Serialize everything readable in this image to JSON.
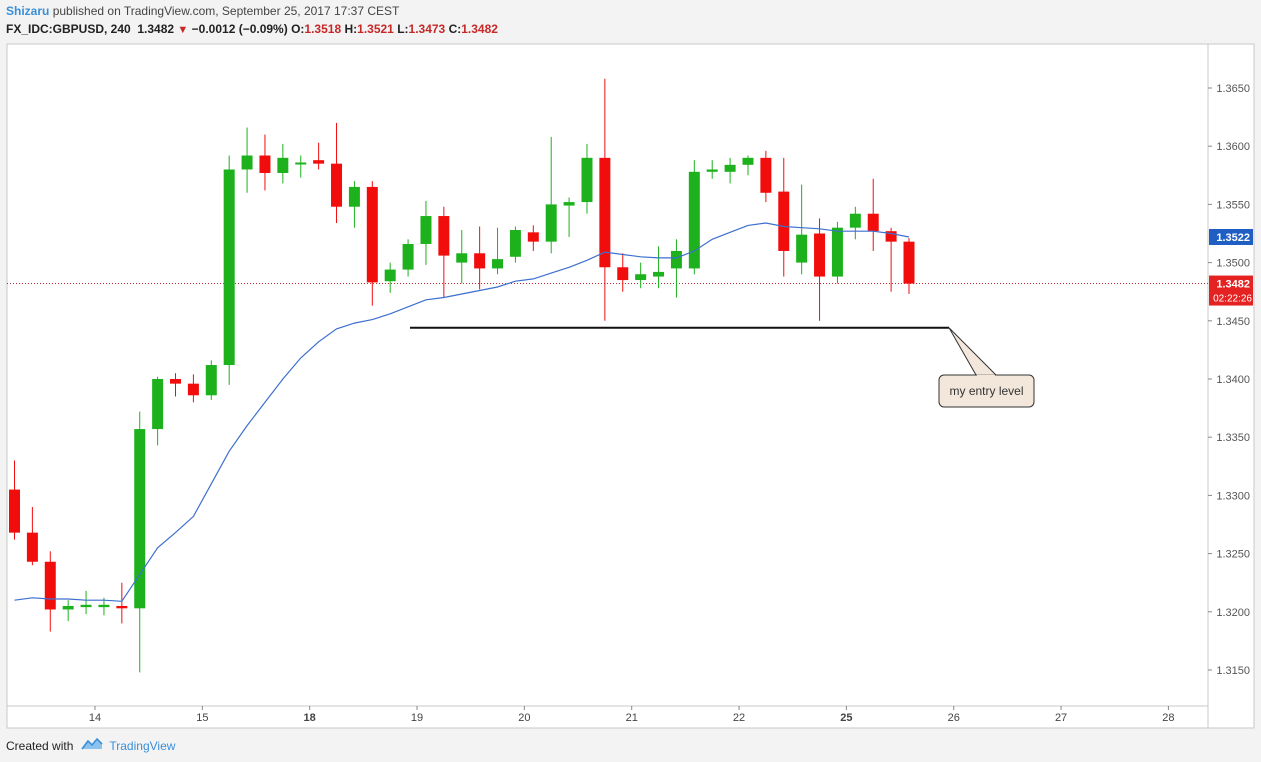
{
  "header": {
    "author": "Shizaru",
    "published": "published on TradingView.com, September 25, 2017 17:37 CEST",
    "symbol": "FX_IDC:GBPUSD, 240",
    "last": "1.3482",
    "change": "−0.0012 (−0.09%)",
    "o_label": "O:",
    "o": "1.3518",
    "h_label": "H:",
    "h": "1.3521",
    "l_label": "L:",
    "l": "1.3473",
    "c_label": "C:",
    "c": "1.3482"
  },
  "footer": {
    "created_with": "Created with",
    "brand": "TradingView"
  },
  "colors": {
    "up": "#1db21d",
    "down": "#f20d0d",
    "ma": "#3d6fcf",
    "price_line": "#c62828",
    "ma_badge": "#1f5fc4",
    "price_badge": "#e52222"
  },
  "chart_data": {
    "type": "candlestick",
    "symbol": "GBPUSD",
    "timeframe": "240",
    "ylim": [
      1.3105,
      1.37
    ],
    "y_ticks": [
      "1.3150",
      "1.3200",
      "1.3250",
      "1.3300",
      "1.3350",
      "1.3400",
      "1.3450",
      "1.3500",
      "1.3550",
      "1.3600",
      "1.3650"
    ],
    "x_ticks": [
      {
        "label": "14",
        "bold": false,
        "i": 4.5
      },
      {
        "label": "15",
        "bold": false,
        "i": 10.5
      },
      {
        "label": "18",
        "bold": true,
        "i": 16.5
      },
      {
        "label": "19",
        "bold": false,
        "i": 22.5
      },
      {
        "label": "20",
        "bold": false,
        "i": 28.5
      },
      {
        "label": "21",
        "bold": false,
        "i": 34.5
      },
      {
        "label": "22",
        "bold": false,
        "i": 40.5
      },
      {
        "label": "25",
        "bold": true,
        "i": 46.5
      },
      {
        "label": "26",
        "bold": false,
        "i": 52.5
      },
      {
        "label": "27",
        "bold": false,
        "i": 58.5
      },
      {
        "label": "28",
        "bold": false,
        "i": 64.5
      }
    ],
    "candles": [
      {
        "o": 1.3305,
        "h": 1.333,
        "l": 1.3262,
        "c": 1.3268
      },
      {
        "o": 1.3268,
        "h": 1.329,
        "l": 1.324,
        "c": 1.3243
      },
      {
        "o": 1.3243,
        "h": 1.3252,
        "l": 1.3183,
        "c": 1.3202
      },
      {
        "o": 1.3202,
        "h": 1.321,
        "l": 1.3192,
        "c": 1.3205
      },
      {
        "o": 1.3204,
        "h": 1.3218,
        "l": 1.3198,
        "c": 1.3206
      },
      {
        "o": 1.3204,
        "h": 1.3212,
        "l": 1.3197,
        "c": 1.3206
      },
      {
        "o": 1.3205,
        "h": 1.3225,
        "l": 1.319,
        "c": 1.3203
      },
      {
        "o": 1.3203,
        "h": 1.3372,
        "l": 1.3148,
        "c": 1.3357
      },
      {
        "o": 1.3357,
        "h": 1.3402,
        "l": 1.3343,
        "c": 1.34
      },
      {
        "o": 1.34,
        "h": 1.3405,
        "l": 1.3385,
        "c": 1.3396
      },
      {
        "o": 1.3396,
        "h": 1.3404,
        "l": 1.338,
        "c": 1.3386
      },
      {
        "o": 1.3386,
        "h": 1.3416,
        "l": 1.3382,
        "c": 1.3412
      },
      {
        "o": 1.3412,
        "h": 1.3592,
        "l": 1.3395,
        "c": 1.358
      },
      {
        "o": 1.358,
        "h": 1.3616,
        "l": 1.356,
        "c": 1.3592
      },
      {
        "o": 1.3592,
        "h": 1.361,
        "l": 1.3562,
        "c": 1.3577
      },
      {
        "o": 1.3577,
        "h": 1.3602,
        "l": 1.3568,
        "c": 1.359
      },
      {
        "o": 1.3586,
        "h": 1.3592,
        "l": 1.3573,
        "c": 1.3586
      },
      {
        "o": 1.3588,
        "h": 1.3603,
        "l": 1.358,
        "c": 1.3585
      },
      {
        "o": 1.3585,
        "h": 1.362,
        "l": 1.3534,
        "c": 1.3548
      },
      {
        "o": 1.3548,
        "h": 1.357,
        "l": 1.353,
        "c": 1.3565
      },
      {
        "o": 1.3565,
        "h": 1.357,
        "l": 1.3463,
        "c": 1.3483
      },
      {
        "o": 1.3484,
        "h": 1.35,
        "l": 1.3474,
        "c": 1.3494
      },
      {
        "o": 1.3494,
        "h": 1.352,
        "l": 1.3488,
        "c": 1.3516
      },
      {
        "o": 1.3516,
        "h": 1.3553,
        "l": 1.3498,
        "c": 1.354
      },
      {
        "o": 1.354,
        "h": 1.3548,
        "l": 1.347,
        "c": 1.3506
      },
      {
        "o": 1.35,
        "h": 1.3528,
        "l": 1.3482,
        "c": 1.3508
      },
      {
        "o": 1.3508,
        "h": 1.3531,
        "l": 1.3477,
        "c": 1.3495
      },
      {
        "o": 1.3495,
        "h": 1.353,
        "l": 1.349,
        "c": 1.3503
      },
      {
        "o": 1.3505,
        "h": 1.3531,
        "l": 1.35,
        "c": 1.3528
      },
      {
        "o": 1.3526,
        "h": 1.3532,
        "l": 1.351,
        "c": 1.3518
      },
      {
        "o": 1.3518,
        "h": 1.3608,
        "l": 1.3508,
        "c": 1.355
      },
      {
        "o": 1.3549,
        "h": 1.3556,
        "l": 1.3522,
        "c": 1.3552
      },
      {
        "o": 1.3552,
        "h": 1.3602,
        "l": 1.3542,
        "c": 1.359
      },
      {
        "o": 1.359,
        "h": 1.3658,
        "l": 1.345,
        "c": 1.3496
      },
      {
        "o": 1.3496,
        "h": 1.3508,
        "l": 1.3475,
        "c": 1.3485
      },
      {
        "o": 1.3485,
        "h": 1.35,
        "l": 1.3478,
        "c": 1.349
      },
      {
        "o": 1.3488,
        "h": 1.3514,
        "l": 1.3478,
        "c": 1.3492
      },
      {
        "o": 1.3495,
        "h": 1.352,
        "l": 1.347,
        "c": 1.351
      },
      {
        "o": 1.3495,
        "h": 1.3588,
        "l": 1.349,
        "c": 1.3578
      },
      {
        "o": 1.3578,
        "h": 1.3588,
        "l": 1.3572,
        "c": 1.358
      },
      {
        "o": 1.3578,
        "h": 1.359,
        "l": 1.3568,
        "c": 1.3584
      },
      {
        "o": 1.3584,
        "h": 1.3592,
        "l": 1.3575,
        "c": 1.359
      },
      {
        "o": 1.359,
        "h": 1.3596,
        "l": 1.3552,
        "c": 1.356
      },
      {
        "o": 1.3561,
        "h": 1.359,
        "l": 1.3488,
        "c": 1.351
      },
      {
        "o": 1.35,
        "h": 1.3567,
        "l": 1.349,
        "c": 1.3524
      },
      {
        "o": 1.3525,
        "h": 1.3538,
        "l": 1.345,
        "c": 1.3488
      },
      {
        "o": 1.3488,
        "h": 1.3535,
        "l": 1.3482,
        "c": 1.353
      },
      {
        "o": 1.353,
        "h": 1.3548,
        "l": 1.352,
        "c": 1.3542
      },
      {
        "o": 1.3542,
        "h": 1.3572,
        "l": 1.351,
        "c": 1.3527
      },
      {
        "o": 1.3527,
        "h": 1.353,
        "l": 1.3475,
        "c": 1.3518
      },
      {
        "o": 1.3518,
        "h": 1.3521,
        "l": 1.3473,
        "c": 1.3482
      }
    ],
    "ma": [
      1.321,
      1.3212,
      1.3211,
      1.3211,
      1.321,
      1.321,
      1.3209,
      1.3232,
      1.3255,
      1.3268,
      1.3282,
      1.331,
      1.3338,
      1.336,
      1.338,
      1.34,
      1.3418,
      1.3432,
      1.3443,
      1.3448,
      1.3451,
      1.3456,
      1.3462,
      1.3468,
      1.347,
      1.3473,
      1.3476,
      1.3479,
      1.3484,
      1.3486,
      1.3491,
      1.3496,
      1.3502,
      1.3509,
      1.3507,
      1.3505,
      1.3504,
      1.3504,
      1.351,
      1.352,
      1.3526,
      1.3532,
      1.3534,
      1.3531,
      1.353,
      1.3529,
      1.3527,
      1.3527,
      1.3527,
      1.3525,
      1.3522
    ],
    "current_price": "1.3482",
    "ma_value": "1.3522",
    "countdown": "02:22:26",
    "entry_level": 1.3444,
    "entry_label": "my entry level"
  }
}
